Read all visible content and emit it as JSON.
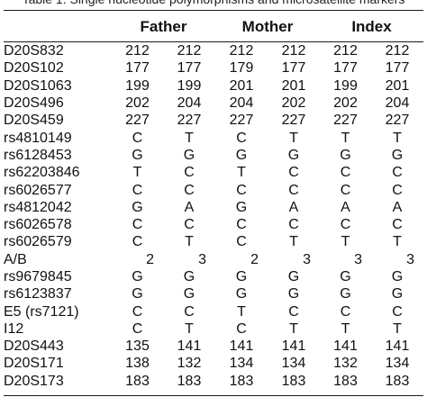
{
  "caption": "Table 1. Single nucleotide polymorphisms and microsatellite markers",
  "headers": {
    "marker": "",
    "groups": [
      "Father",
      "Mother",
      "Index"
    ]
  },
  "rows": [
    {
      "marker": "D20S832",
      "values": [
        "212",
        "212",
        "212",
        "212",
        "212",
        "212"
      ]
    },
    {
      "marker": "D20S102",
      "values": [
        "177",
        "177",
        "179",
        "177",
        "177",
        "177"
      ]
    },
    {
      "marker": "D20S1063",
      "values": [
        "199",
        "199",
        "201",
        "201",
        "199",
        "201"
      ]
    },
    {
      "marker": "D20S496",
      "values": [
        "202",
        "204",
        "204",
        "202",
        "202",
        "204"
      ]
    },
    {
      "marker": "D20S459",
      "values": [
        "227",
        "227",
        "227",
        "227",
        "227",
        "227"
      ]
    },
    {
      "marker": "rs4810149",
      "values": [
        "C",
        "T",
        "C",
        "T",
        "T",
        "T"
      ]
    },
    {
      "marker": "rs6128453",
      "values": [
        "G",
        "G",
        "G",
        "G",
        "G",
        "G"
      ]
    },
    {
      "marker": "rs62203846",
      "values": [
        "T",
        "C",
        "T",
        "C",
        "C",
        "C"
      ]
    },
    {
      "marker": "rs6026577",
      "values": [
        "C",
        "C",
        "C",
        "C",
        "C",
        "C"
      ]
    },
    {
      "marker": "rs4812042",
      "values": [
        "G",
        "A",
        "G",
        "A",
        "A",
        "A"
      ]
    },
    {
      "marker": "rs6026578",
      "values": [
        "C",
        "C",
        "C",
        "C",
        "C",
        "C"
      ]
    },
    {
      "marker": "rs6026579",
      "values": [
        "C",
        "T",
        "C",
        "T",
        "T",
        "T"
      ]
    },
    {
      "marker": "A/B",
      "values": [
        "2",
        "3",
        "2",
        "3",
        "3",
        "3"
      ]
    },
    {
      "marker": "rs9679845",
      "values": [
        "G",
        "G",
        "G",
        "G",
        "G",
        "G"
      ]
    },
    {
      "marker": "rs6123837",
      "values": [
        "G",
        "G",
        "G",
        "G",
        "G",
        "G"
      ]
    },
    {
      "marker": "E5 (rs7121)",
      "values": [
        "C",
        "C",
        "T",
        "C",
        "C",
        "C"
      ]
    },
    {
      "marker": "I12",
      "values": [
        "C",
        "T",
        "C",
        "T",
        "T",
        "T"
      ]
    },
    {
      "marker": "D20S443",
      "values": [
        "135",
        "141",
        "141",
        "141",
        "141",
        "141"
      ]
    },
    {
      "marker": "D20S171",
      "values": [
        "138",
        "132",
        "134",
        "134",
        "132",
        "134"
      ]
    },
    {
      "marker": "D20S173",
      "values": [
        "183",
        "183",
        "183",
        "183",
        "183",
        "183"
      ]
    }
  ]
}
